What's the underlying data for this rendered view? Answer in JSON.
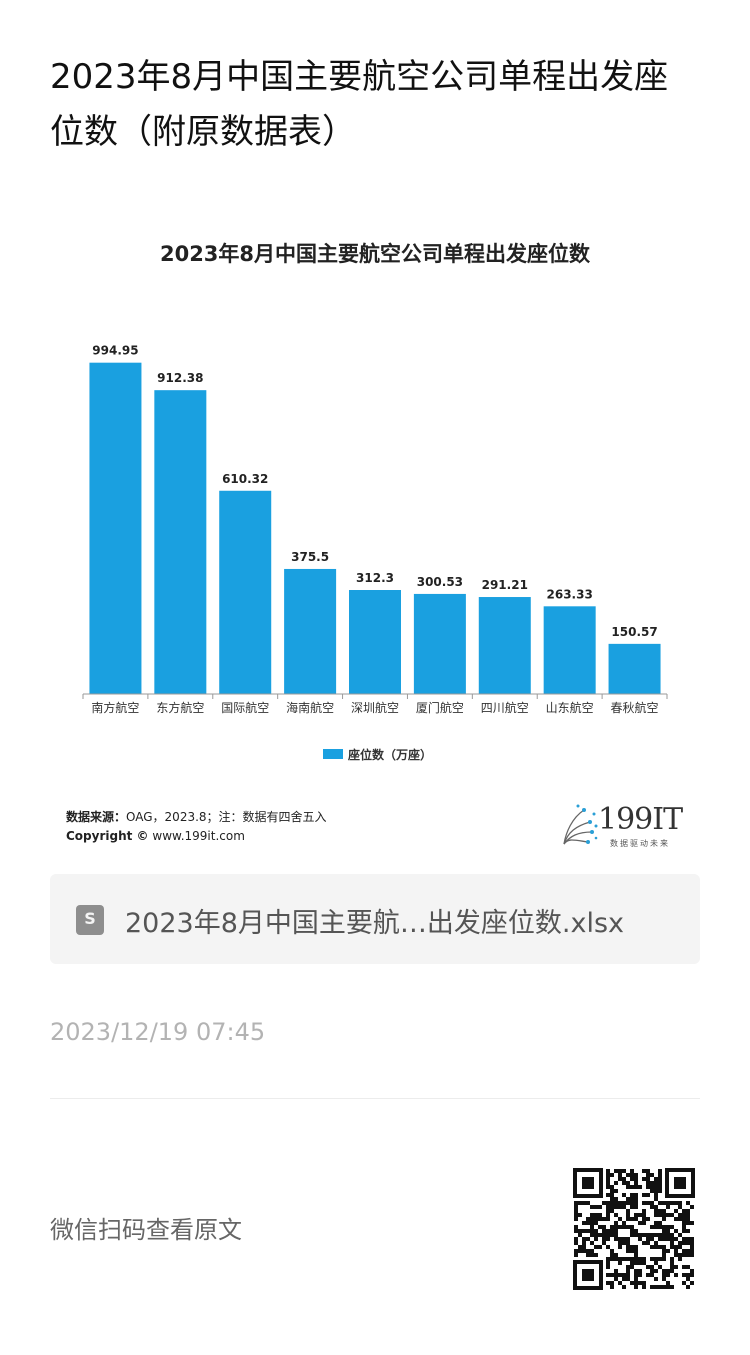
{
  "article": {
    "title": "2023年8月中国主要航空公司单程出发座位数（附原数据表）"
  },
  "chart_data": {
    "type": "bar",
    "title": "2023年8月中国主要航空公司单程出发座位数",
    "categories": [
      "南方航空",
      "东方航空",
      "国际航空",
      "海南航空",
      "深圳航空",
      "厦门航空",
      "四川航空",
      "山东航空",
      "春秋航空"
    ],
    "series": [
      {
        "name": "座位数（万座）",
        "values": [
          994.95,
          912.38,
          610.32,
          375.5,
          312.3,
          300.53,
          291.21,
          263.33,
          150.57
        ],
        "color": "#1aa0e0"
      }
    ],
    "labels": [
      "994.95",
      "912.38",
      "610.32",
      "375.5",
      "312.3",
      "300.53",
      "291.21",
      "263.33",
      "150.57"
    ],
    "ylim": [
      0,
      1000
    ],
    "grid": false,
    "legend": "bottom-center"
  },
  "footer": {
    "source_label": "数据来源：",
    "source_text": "OAG，2023.8；注：数据有四舍五入",
    "copyright_label": "Copyright ©",
    "copyright_text": "www.199it.com",
    "logo_text": "199IT",
    "logo_sub": "数据驱动未来"
  },
  "attachment": {
    "file_name": "2023年8月中国主要航…出发座位数.xlsx",
    "icon": "spreadsheet-file-icon",
    "icon_letter": "S"
  },
  "meta": {
    "timestamp": "2023/12/19 07:45",
    "scan_prompt": "微信扫码查看原文"
  },
  "colors": {
    "bar": "#1aa0e0",
    "muted": "#b3b3b3"
  }
}
